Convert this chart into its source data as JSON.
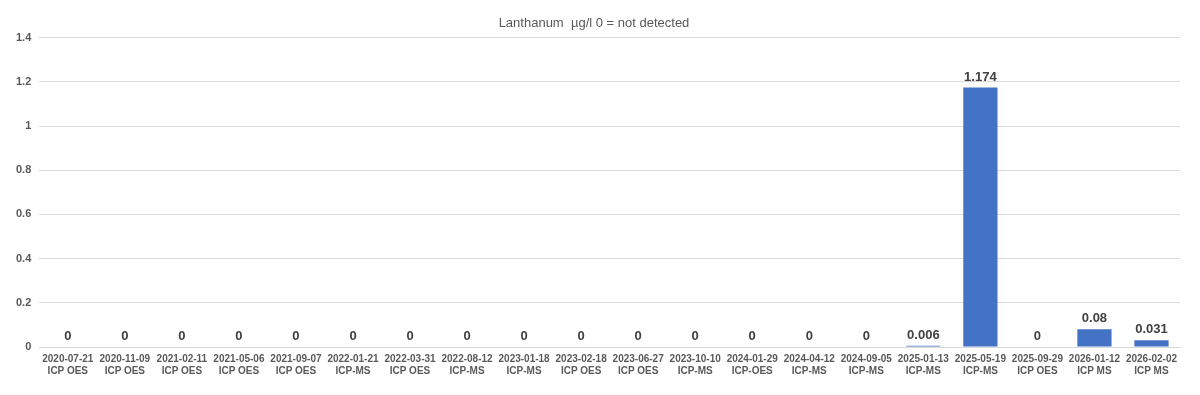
{
  "chart_data": {
    "type": "bar",
    "title": "Lanthanum  µg/l 0 = not detected",
    "categories": [
      "2020-07-21\nICP OES",
      "2020-11-09\nICP OES",
      "2021-02-11\nICP OES",
      "2021-05-06\nICP OES",
      "2021-09-07\nICP OES",
      "2022-01-21\nICP-MS",
      "2022-03-31\nICP OES",
      "2022-08-12\nICP-MS",
      "2023-01-18\nICP-MS",
      "2023-02-18\nICP OES",
      "2023-06-27\nICP OES",
      "2023-10-10\nICP-MS",
      "2024-01-29\nICP-OES",
      "2024-04-12\nICP-MS",
      "2024-09-05\nICP-MS",
      "2025-01-13\nICP-MS",
      "2025-05-19\nICP-MS",
      "2025-09-29\nICP OES",
      "2026-01-12\nICP MS",
      "2026-02-02\nICP MS"
    ],
    "values": [
      0,
      0,
      0,
      0,
      0,
      0,
      0,
      0,
      0,
      0,
      0,
      0,
      0,
      0,
      0,
      0.006,
      1.174,
      0,
      0.08,
      0.031
    ],
    "color": "#4472c4",
    "ylim": [
      0,
      1.4
    ],
    "yticks": [
      0,
      0.2,
      0.4,
      0.6,
      0.8,
      1,
      1.2,
      1.4
    ],
    "grid": "y",
    "data_labels": true,
    "legend": false
  }
}
